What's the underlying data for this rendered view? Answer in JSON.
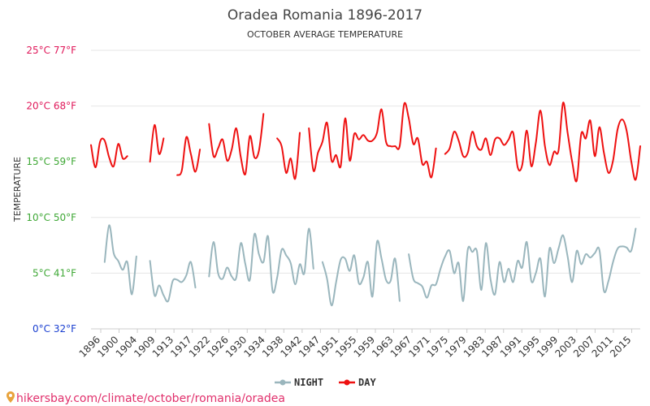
{
  "chart_data": {
    "type": "line",
    "title": "Oradea Romania 1896-2017",
    "subtitle": "OCTOBER AVERAGE TEMPERATURE",
    "ylabel": "TEMPERATURE",
    "ylim": [
      0,
      25
    ],
    "y_ticks": [
      {
        "value": 0,
        "label": "0°C 32°F",
        "color": "#1a3fd0"
      },
      {
        "value": 5,
        "label": "5°C 41°F",
        "color": "#3fa836"
      },
      {
        "value": 10,
        "label": "10°C 50°F",
        "color": "#3fa836"
      },
      {
        "value": 15,
        "label": "15°C 59°F",
        "color": "#3fa836"
      },
      {
        "value": 20,
        "label": "20°C 68°F",
        "color": "#e0185a"
      },
      {
        "value": 25,
        "label": "25°C 77°F",
        "color": "#e0185a"
      }
    ],
    "xlim": [
      1896,
      2017
    ],
    "x_tick_labels": [
      "1896",
      "1900",
      "1904",
      "1909",
      "1913",
      "1917",
      "1922",
      "1926",
      "1930",
      "1934",
      "1938",
      "1942",
      "1947",
      "1951",
      "1955",
      "1959",
      "1963",
      "1967",
      "1971",
      "1975",
      "1979",
      "1983",
      "1987",
      "1991",
      "1995",
      "1999",
      "2003",
      "2007",
      "2011",
      "2015"
    ],
    "series": [
      {
        "name": "NIGHT",
        "color": "#9ab6bd",
        "segments": [
          {
            "x": [
              1899,
              1900,
              1901,
              1902,
              1903,
              1904,
              1905,
              1906,
              1907
            ],
            "y": [
              6.0,
              9.3,
              6.8,
              6.1,
              5.3,
              6.0,
              3.1,
              6.5,
              null
            ]
          },
          {
            "x": [
              1909,
              1910,
              1911,
              1912,
              1913,
              1914,
              1915,
              1916,
              1917,
              1918,
              1919,
              1920,
              1921
            ],
            "y": [
              6.1,
              3.0,
              3.9,
              3.0,
              2.5,
              4.3,
              4.4,
              4.2,
              4.8,
              6.0,
              3.7,
              null,
              null
            ]
          },
          {
            "x": [
              1922,
              1923,
              1924,
              1925,
              1926,
              1927,
              1928,
              1929,
              1930,
              1931,
              1932,
              1933,
              1934,
              1935,
              1936,
              1937,
              1938,
              1939,
              1940,
              1941,
              1942,
              1943,
              1944,
              1945
            ],
            "y": [
              4.7,
              7.8,
              5.0,
              4.5,
              5.5,
              4.7,
              4.6,
              7.7,
              5.8,
              4.4,
              8.5,
              6.7,
              6.0,
              8.3,
              3.4,
              4.6,
              7.1,
              6.6,
              5.9,
              4.0,
              5.8,
              5.0,
              9.0,
              5.4
            ]
          },
          {
            "x": [
              1947,
              1948,
              1949,
              1950,
              1951,
              1952,
              1953,
              1954,
              1955,
              1956,
              1957,
              1958,
              1959,
              1960,
              1961,
              1962,
              1963,
              1964
            ],
            "y": [
              6.0,
              4.5,
              2.1,
              4.2,
              6.2,
              6.3,
              5.2,
              6.6,
              4.1,
              4.6,
              6.0,
              2.9,
              7.8,
              6.3,
              4.4,
              4.3,
              6.3,
              2.5
            ]
          },
          {
            "x": [
              1966,
              1967,
              1968,
              1969,
              1970,
              1971,
              1972,
              1973,
              1974,
              1975,
              1976,
              1977,
              1978,
              1979,
              1980,
              1981,
              1982,
              1983,
              1984,
              1985,
              1986,
              1987,
              1988,
              1989,
              1990,
              1991,
              1992,
              1993,
              1994,
              1995,
              1996,
              1997,
              1998,
              1999,
              2000,
              2001,
              2002,
              2003,
              2004,
              2005,
              2006,
              2007,
              2008,
              2009,
              2010,
              2011,
              2012,
              2013,
              2014,
              2015,
              2016,
              2017
            ],
            "y": [
              6.7,
              4.5,
              4.1,
              3.8,
              2.8,
              3.9,
              4.0,
              5.4,
              6.5,
              7.0,
              5.0,
              5.9,
              2.5,
              7.1,
              6.9,
              7.0,
              3.5,
              7.7,
              4.5,
              3.1,
              6.0,
              4.2,
              5.4,
              4.2,
              6.1,
              5.5,
              7.8,
              4.3,
              5.0,
              6.3,
              2.9,
              7.2,
              5.9,
              7.2,
              8.4,
              6.5,
              4.2,
              7.0,
              5.8,
              6.7,
              6.4,
              6.8,
              7.1,
              3.4,
              4.3,
              6.0,
              7.2,
              7.4,
              7.3,
              7.0,
              9.0,
              null
            ]
          }
        ]
      },
      {
        "name": "DAY",
        "color": "#ee1111",
        "segments": [
          {
            "x": [
              1896,
              1897,
              1898,
              1899,
              1900,
              1901,
              1902,
              1903,
              1904,
              1905,
              1906,
              1907
            ],
            "y": [
              16.5,
              14.5,
              16.8,
              16.9,
              15.4,
              14.6,
              16.6,
              15.3,
              15.5,
              null,
              null,
              null
            ]
          },
          {
            "x": [
              1909,
              1910,
              1911,
              1912,
              1913
            ],
            "y": [
              15.0,
              18.3,
              15.7,
              17.1,
              null
            ]
          },
          {
            "x": [
              1915,
              1916,
              1917,
              1918,
              1919,
              1920,
              1921
            ],
            "y": [
              13.8,
              14.2,
              17.2,
              15.7,
              14.1,
              16.1,
              null
            ]
          },
          {
            "x": [
              1922,
              1923,
              1924,
              1925,
              1926,
              1927,
              1928,
              1929,
              1930,
              1931,
              1932,
              1933,
              1934,
              1935
            ],
            "y": [
              18.4,
              15.5,
              16.2,
              17.0,
              15.1,
              16.1,
              18.0,
              15.4,
              13.9,
              17.3,
              15.4,
              16.0,
              19.3,
              null
            ]
          },
          {
            "x": [
              1937,
              1938,
              1939,
              1940,
              1941,
              1942,
              1943
            ],
            "y": [
              17.1,
              16.4,
              14.0,
              15.3,
              13.5,
              17.6,
              null
            ]
          },
          {
            "x": [
              1944,
              1945,
              1946,
              1947,
              1948,
              1949,
              1950,
              1951,
              1952,
              1953,
              1954,
              1955,
              1956,
              1957,
              1958,
              1959,
              1960,
              1961,
              1962,
              1963,
              1964,
              1965,
              1966,
              1967,
              1968,
              1969,
              1970,
              1971,
              1972,
              1973
            ],
            "y": [
              18.0,
              14.2,
              15.8,
              16.8,
              18.5,
              15.1,
              15.6,
              14.6,
              18.9,
              15.1,
              17.5,
              17.0,
              17.4,
              16.9,
              16.9,
              17.6,
              19.7,
              16.8,
              16.4,
              16.4,
              16.4,
              20.2,
              18.9,
              16.6,
              17.1,
              14.8,
              15.0,
              13.6,
              16.2,
              null
            ]
          },
          {
            "x": [
              1974,
              1975,
              1976,
              1977,
              1978,
              1979,
              1980,
              1981,
              1982,
              1983,
              1984,
              1985,
              1986,
              1987,
              1988,
              1989,
              1990,
              1991,
              1992,
              1993,
              1994,
              1995,
              1996,
              1997,
              1998,
              1999,
              2000,
              2001,
              2002,
              2003,
              2004,
              2005,
              2006,
              2007,
              2008,
              2009,
              2010,
              2011,
              2012,
              2013,
              2014,
              2015,
              2016,
              2017
            ],
            "y": [
              15.7,
              16.2,
              17.7,
              16.9,
              15.5,
              15.8,
              17.7,
              16.4,
              16.1,
              17.1,
              15.6,
              17.0,
              17.1,
              16.5,
              17.0,
              17.6,
              14.5,
              14.7,
              17.8,
              14.6,
              16.7,
              19.6,
              16.4,
              14.7,
              15.9,
              16.0,
              20.3,
              17.6,
              15.0,
              13.3,
              17.5,
              17.1,
              18.7,
              15.5,
              18.1,
              15.8,
              14.0,
              15.1,
              17.9,
              18.8,
              17.8,
              15.1,
              13.4,
              16.4
            ]
          }
        ]
      }
    ],
    "legend_position": "bottom-center"
  },
  "source_url": "hikersbay.com/climate/october/romania/oradea"
}
